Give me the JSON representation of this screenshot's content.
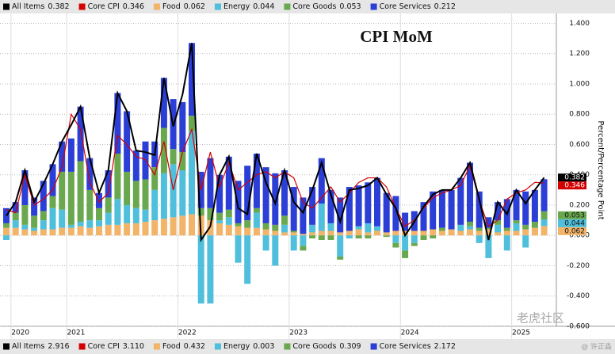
{
  "chart_data": {
    "type": "stacked_bar",
    "title": "CPI MoM",
    "y_axis_label": "Percent/Percentage Point",
    "ylim": [
      -0.6,
      1.46
    ],
    "yticks": [
      {
        "value": -0.6,
        "label": "-0.600"
      },
      {
        "value": -0.4,
        "label": "-0.400"
      },
      {
        "value": -0.2,
        "label": "-0.200"
      },
      {
        "value": 0,
        "label": "0.000"
      },
      {
        "value": 0.2,
        "label": "0.200"
      },
      {
        "value": 0.4,
        "label": "0.400"
      },
      {
        "value": 0.6,
        "label": "0.600"
      },
      {
        "value": 0.8,
        "label": "0.800"
      },
      {
        "value": 1,
        "label": "1.000"
      },
      {
        "value": 1.2,
        "label": "1.200"
      },
      {
        "value": 1.4,
        "label": "1.400"
      }
    ],
    "grid": true,
    "categories": [
      null,
      "2020",
      null,
      null,
      null,
      null,
      null,
      "2021",
      null,
      null,
      null,
      null,
      null,
      null,
      null,
      null,
      null,
      null,
      null,
      "2022",
      null,
      null,
      null,
      null,
      null,
      null,
      null,
      null,
      null,
      null,
      null,
      "2023",
      null,
      null,
      null,
      null,
      null,
      null,
      null,
      null,
      null,
      null,
      null,
      "2024",
      null,
      null,
      null,
      null,
      null,
      null,
      null,
      null,
      null,
      null,
      null,
      "2025",
      null,
      null,
      null
    ],
    "series": [
      {
        "name": "All Items",
        "kind": "line",
        "color": "#000000",
        "total": 2.916,
        "values": [
          0.13,
          0.22,
          0.43,
          0.22,
          0.34,
          0.47,
          0.62,
          0.73,
          0.85,
          0.51,
          0.28,
          0.43,
          0.94,
          0.82,
          0.56,
          0.55,
          0.53,
          1.04,
          0.72,
          0.93,
          1.27,
          -0.03,
          0.06,
          0.4,
          0.52,
          0.18,
          0.14,
          0.54,
          0.35,
          0.21,
          0.43,
          0.22,
          0.15,
          0.3,
          0.48,
          0.27,
          0.09,
          0.3,
          0.31,
          0.33,
          0.38,
          0.27,
          0.18,
          0.0,
          0.09,
          0.19,
          0.27,
          0.3,
          0.3,
          0.38,
          0.48,
          0.24,
          -0.03,
          0.22,
          0.14,
          0.3,
          0.21,
          0.3,
          0.382
        ]
      },
      {
        "name": "Core CPI",
        "kind": "line",
        "color": "#d40000",
        "total": {
          "value": 3.11,
          "label": "3.110"
        },
        "values": [
          0.17,
          0.15,
          0.4,
          0.2,
          0.24,
          0.3,
          0.45,
          0.8,
          0.7,
          0.35,
          0.22,
          0.28,
          0.66,
          0.6,
          0.52,
          0.5,
          0.4,
          0.62,
          0.3,
          0.55,
          0.7,
          0.3,
          0.55,
          0.32,
          0.48,
          0.3,
          0.35,
          0.4,
          0.42,
          0.38,
          0.42,
          0.38,
          0.22,
          0.18,
          0.25,
          0.32,
          0.22,
          0.28,
          0.35,
          0.38,
          0.38,
          0.32,
          0.18,
          0.06,
          0.1,
          0.18,
          0.25,
          0.28,
          0.3,
          0.33,
          0.46,
          0.23,
          0.06,
          0.1,
          0.24,
          0.28,
          0.3,
          0.35,
          0.346
        ]
      },
      {
        "name": "Food",
        "kind": "bar",
        "color": "#f2b469",
        "total": 0.432,
        "values": [
          0.05,
          0.05,
          0.04,
          0.03,
          0.04,
          0.04,
          0.05,
          0.05,
          0.06,
          0.05,
          0.06,
          0.07,
          0.07,
          0.08,
          0.08,
          0.09,
          0.1,
          0.11,
          0.12,
          0.13,
          0.14,
          0.13,
          0.1,
          0.08,
          0.07,
          0.06,
          0.05,
          0.05,
          0.04,
          0.03,
          0.02,
          0.02,
          0.01,
          0.02,
          0.03,
          0.03,
          0.02,
          0.03,
          0.04,
          0.02,
          0.03,
          0.02,
          0.03,
          0.03,
          0.03,
          0.03,
          0.04,
          0.03,
          0.04,
          0.03,
          0.04,
          0.03,
          0.04,
          0.02,
          0.03,
          0.03,
          0.04,
          0.05,
          0.062
        ]
      },
      {
        "name": "Energy",
        "kind": "bar",
        "color": "#4fbfdc",
        "total": 0.003,
        "values": [
          -0.03,
          0.05,
          0.03,
          0.02,
          0.06,
          0.14,
          0.12,
          0.02,
          0.03,
          0.05,
          0.04,
          0.08,
          0.17,
          0.12,
          0.1,
          0.08,
          0.2,
          0.3,
          0.35,
          0.3,
          0.55,
          -0.45,
          -0.45,
          0.02,
          0.05,
          -0.18,
          -0.32,
          0.1,
          -0.1,
          -0.2,
          0.05,
          -0.1,
          -0.07,
          0.05,
          0.18,
          0.05,
          -0.14,
          -0.02,
          0.02,
          0.06,
          0.03,
          0.0,
          -0.05,
          -0.1,
          -0.05,
          0.0,
          0.0,
          0.0,
          0.0,
          0.04,
          0.02,
          -0.05,
          -0.15,
          0.05,
          -0.1,
          0.05,
          -0.08,
          0.0,
          0.044
        ]
      },
      {
        "name": "Core Goods",
        "kind": "bar",
        "color": "#6aa84f",
        "total": 0.309,
        "values": [
          0.03,
          0.05,
          0.13,
          0.08,
          0.06,
          0.08,
          0.25,
          0.35,
          0.4,
          0.2,
          0.08,
          0.1,
          0.3,
          0.22,
          0.18,
          0.2,
          0.15,
          0.3,
          0.1,
          0.12,
          0.1,
          0.05,
          0.08,
          0.05,
          0.05,
          0.02,
          0.05,
          0.03,
          0.04,
          0.04,
          0.06,
          0.01,
          -0.03,
          -0.02,
          -0.03,
          -0.03,
          -0.02,
          0.0,
          -0.02,
          -0.02,
          0.0,
          -0.01,
          -0.03,
          -0.05,
          -0.02,
          -0.03,
          -0.02,
          0.02,
          0.0,
          0.0,
          0.03,
          0.02,
          0.01,
          0.03,
          0.02,
          0.02,
          0.03,
          0.04,
          0.053
        ]
      },
      {
        "name": "Core Services",
        "kind": "bar",
        "color": "#2b3fd6",
        "total": 2.172,
        "values": [
          0.1,
          0.07,
          0.23,
          0.12,
          0.2,
          0.21,
          0.2,
          0.22,
          0.36,
          0.21,
          0.1,
          0.18,
          0.4,
          0.4,
          0.2,
          0.25,
          0.17,
          0.33,
          0.33,
          0.33,
          0.48,
          0.24,
          0.33,
          0.25,
          0.35,
          0.28,
          0.36,
          0.36,
          0.37,
          0.34,
          0.3,
          0.29,
          0.24,
          0.25,
          0.3,
          0.22,
          0.23,
          0.29,
          0.27,
          0.27,
          0.32,
          0.26,
          0.23,
          0.12,
          0.13,
          0.19,
          0.25,
          0.25,
          0.26,
          0.31,
          0.39,
          0.24,
          0.07,
          0.12,
          0.19,
          0.2,
          0.22,
          0.21,
          0.212
        ]
      }
    ],
    "watermark": {
      "brand": "老虎社区",
      "author": "@ 许正淼"
    }
  }
}
